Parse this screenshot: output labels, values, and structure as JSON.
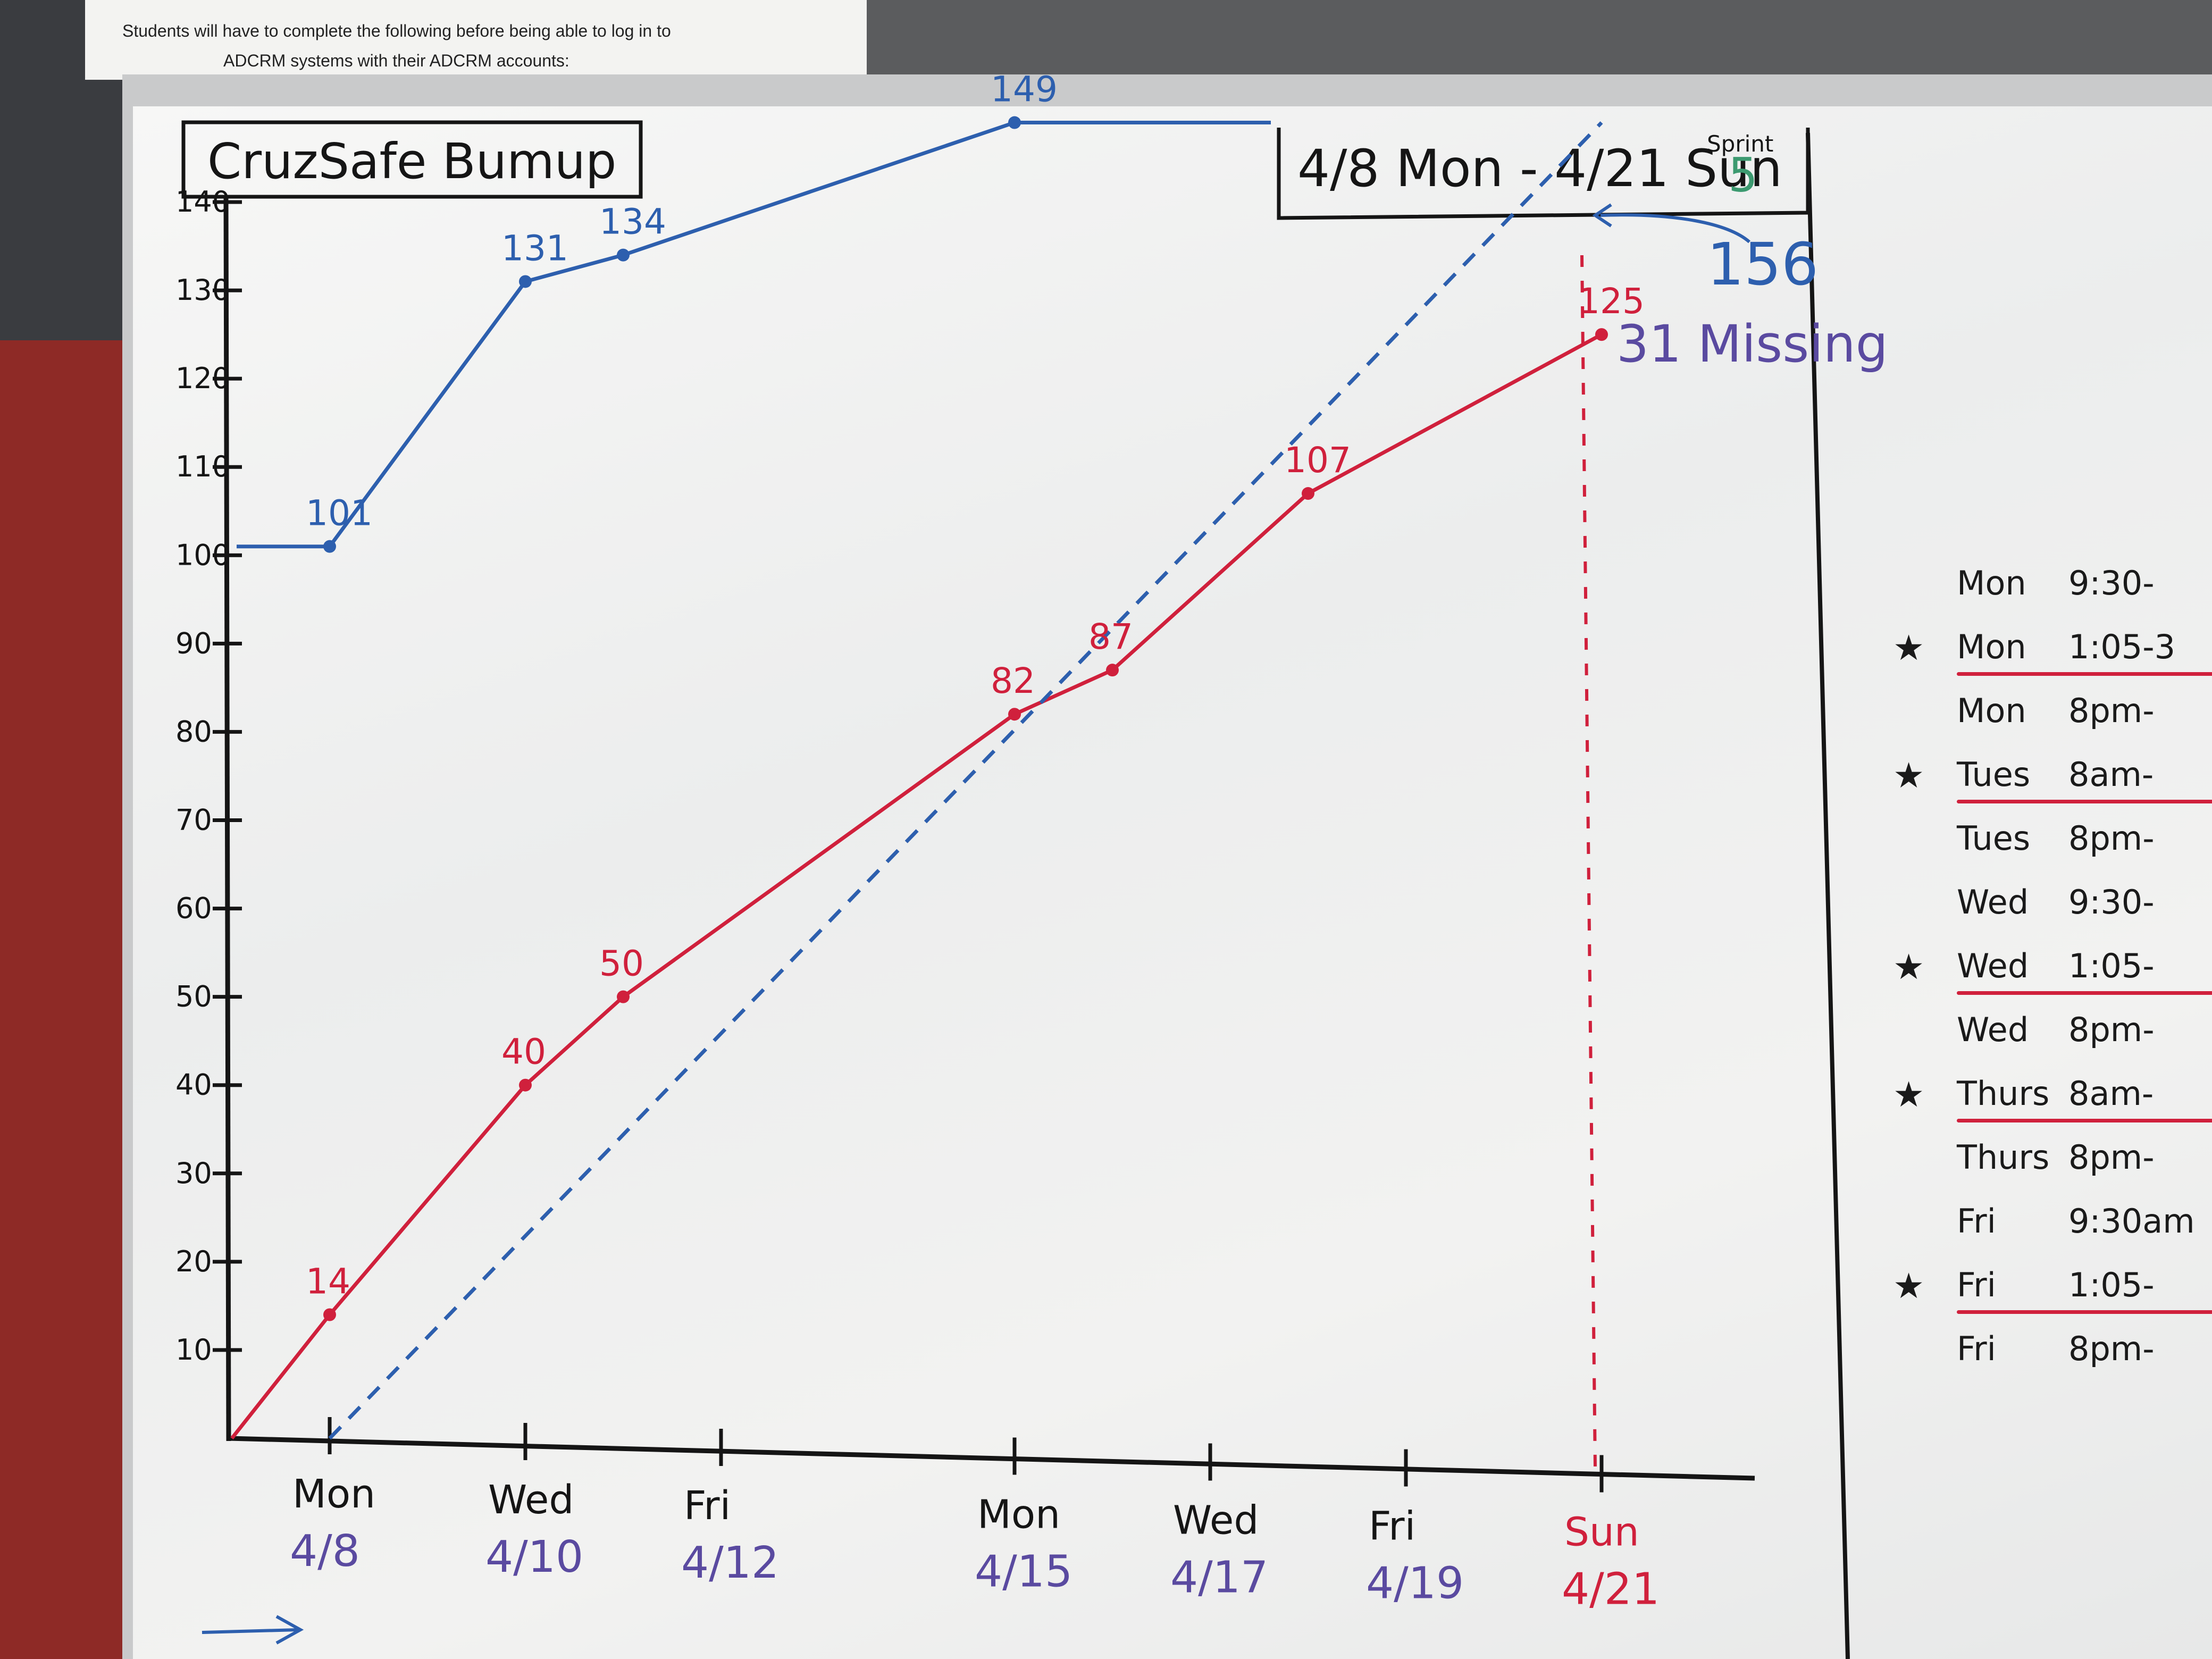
{
  "paper_notice": {
    "line1": "Students will have to complete the following before being able to log in to",
    "line2": "ADCRM systems with their ADCRM accounts:"
  },
  "board": {
    "title": "CruzSafe Bumup",
    "date_range": "4/8 Mon - 4/21 Sun",
    "sprint_label": "Sprint",
    "sprint_number": "5"
  },
  "chart_data": {
    "type": "line",
    "x_axis": {
      "labels": [
        {
          "day": "Mon",
          "date": "4/8"
        },
        {
          "day": "Wed",
          "date": "4/10"
        },
        {
          "day": "Fri",
          "date": "4/12"
        },
        {
          "day": "Mon",
          "date": "4/15"
        },
        {
          "day": "Wed",
          "date": "4/17"
        },
        {
          "day": "Fri",
          "date": "4/19"
        },
        {
          "day": "Sun",
          "date": "4/21"
        }
      ]
    },
    "y_axis": {
      "ticks": [
        "10",
        "20",
        "30",
        "40",
        "50",
        "60",
        "70",
        "80",
        "90",
        "100",
        "110",
        "120",
        "130",
        "140"
      ],
      "ylim": [
        0,
        140
      ]
    },
    "series": [
      {
        "kind": "scope",
        "color": "#2d5fae",
        "points": [
          {
            "x": "4/8",
            "y": 101,
            "label": "101"
          },
          {
            "x": "4/10",
            "y": 131,
            "label": "131"
          },
          {
            "x": "4/11",
            "y": 134,
            "label": "134"
          },
          {
            "x": "4/15",
            "y": 149,
            "label": "149"
          }
        ]
      },
      {
        "kind": "completed",
        "color": "#d0203c",
        "points": [
          {
            "x": "4/7",
            "y": 0,
            "label": ""
          },
          {
            "x": "4/8",
            "y": 14,
            "label": "14"
          },
          {
            "x": "4/10",
            "y": 40,
            "label": "40"
          },
          {
            "x": "4/11",
            "y": 50,
            "label": "50"
          },
          {
            "x": "4/15",
            "y": 82,
            "label": "82"
          },
          {
            "x": "4/16",
            "y": 87,
            "label": "87"
          },
          {
            "x": "4/18",
            "y": 107,
            "label": "107"
          },
          {
            "x": "4/21",
            "y": 125,
            "label": "125"
          }
        ]
      },
      {
        "kind": "ideal",
        "color": "#2d5fae",
        "dashed": true,
        "points": [
          {
            "x": "4/8",
            "y": 0
          },
          {
            "x": "4/21",
            "y": 149
          }
        ]
      }
    ],
    "annotations": {
      "total": "156",
      "missing": "31 Missing",
      "sprint_end": "Sun 4/21"
    }
  },
  "schedule": [
    {
      "star": "",
      "day": "Mon",
      "time": "9:30-",
      "underline": false
    },
    {
      "star": "★",
      "day": "Mon",
      "time": "1:05-3",
      "underline": true
    },
    {
      "star": "",
      "day": "Mon",
      "time": "8pm-",
      "underline": false
    },
    {
      "star": "★",
      "day": "Tues",
      "time": "8am-",
      "underline": true
    },
    {
      "star": "",
      "day": "Tues",
      "time": "8pm-",
      "underline": false
    },
    {
      "star": "",
      "day": "Wed",
      "time": "9:30-",
      "underline": false
    },
    {
      "star": "★",
      "day": "Wed",
      "time": "1:05-",
      "underline": true
    },
    {
      "star": "",
      "day": "Wed",
      "time": "8pm-",
      "underline": false
    },
    {
      "star": "★",
      "day": "Thurs",
      "time": "8am-",
      "underline": true
    },
    {
      "star": "",
      "day": "Thurs",
      "time": "8pm-",
      "underline": false
    },
    {
      "star": "",
      "day": "Fri",
      "time": "9:30am",
      "underline": false
    },
    {
      "star": "★",
      "day": "Fri",
      "time": "1:05-",
      "underline": true
    },
    {
      "star": "",
      "day": "Fri",
      "time": "8pm-",
      "underline": false
    }
  ]
}
